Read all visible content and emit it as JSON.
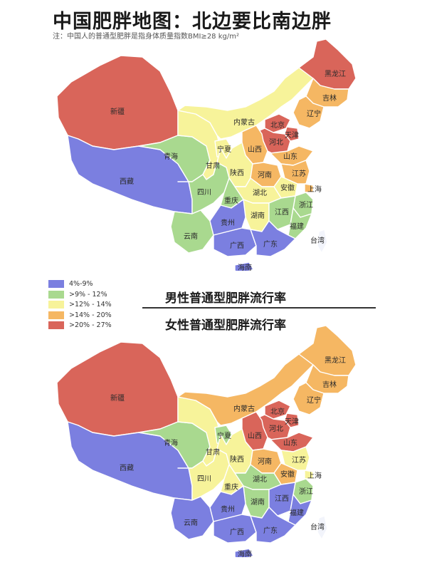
{
  "title": "中国肥胖地图：北边要比南边胖",
  "note": "注：中国人的普通型肥胖是指身体质量指数BMI≥28 kg/m²",
  "legend": [
    {
      "label": "4%-9%",
      "color": "#7b7fe0"
    },
    {
      "label": ">9% - 12%",
      "color": "#a9d98f"
    },
    {
      "label": ">12% - 14%",
      "color": "#f7f39a"
    },
    {
      "label": ">14% - 20%",
      "color": "#f5b763"
    },
    {
      "label": ">20% - 27%",
      "color": "#d9655a"
    }
  ],
  "maps": {
    "male": {
      "caption": "男性普通型肥胖流行率",
      "provinces": [
        {
          "name": "新疆",
          "level": 5
        },
        {
          "name": "西藏",
          "level": 1
        },
        {
          "name": "青海",
          "level": 2
        },
        {
          "name": "甘肃",
          "level": 3
        },
        {
          "name": "宁夏",
          "level": 3
        },
        {
          "name": "内蒙古",
          "level": 3
        },
        {
          "name": "黑龙江",
          "level": 5
        },
        {
          "name": "吉林",
          "level": 4
        },
        {
          "name": "辽宁",
          "level": 4
        },
        {
          "name": "北京",
          "level": 5
        },
        {
          "name": "天津",
          "level": 5
        },
        {
          "name": "河北",
          "level": 5
        },
        {
          "name": "山西",
          "level": 4
        },
        {
          "name": "陕西",
          "level": 3
        },
        {
          "name": "山东",
          "level": 4
        },
        {
          "name": "河南",
          "level": 4
        },
        {
          "name": "江苏",
          "level": 4
        },
        {
          "name": "安徽",
          "level": 3
        },
        {
          "name": "上海",
          "level": 4
        },
        {
          "name": "四川",
          "level": 2
        },
        {
          "name": "重庆",
          "level": 2
        },
        {
          "name": "湖北",
          "level": 3
        },
        {
          "name": "浙江",
          "level": 2
        },
        {
          "name": "湖南",
          "level": 3
        },
        {
          "name": "江西",
          "level": 2
        },
        {
          "name": "福建",
          "level": 2
        },
        {
          "name": "云南",
          "level": 2
        },
        {
          "name": "贵州",
          "level": 1
        },
        {
          "name": "广西",
          "level": 1
        },
        {
          "name": "广东",
          "level": 1
        },
        {
          "name": "台湾",
          "level": 0
        },
        {
          "name": "海南",
          "level": 1
        }
      ]
    },
    "female": {
      "caption": "女性普通型肥胖流行率",
      "provinces": [
        {
          "name": "新疆",
          "level": 5
        },
        {
          "name": "西藏",
          "level": 1
        },
        {
          "name": "青海",
          "level": 2
        },
        {
          "name": "甘肃",
          "level": 3
        },
        {
          "name": "宁夏",
          "level": 2
        },
        {
          "name": "内蒙古",
          "level": 4
        },
        {
          "name": "黑龙江",
          "level": 4
        },
        {
          "name": "吉林",
          "level": 4
        },
        {
          "name": "辽宁",
          "level": 4
        },
        {
          "name": "北京",
          "level": 5
        },
        {
          "name": "天津",
          "level": 5
        },
        {
          "name": "河北",
          "level": 5
        },
        {
          "name": "山西",
          "level": 5
        },
        {
          "name": "陕西",
          "level": 3
        },
        {
          "name": "山东",
          "level": 5
        },
        {
          "name": "河南",
          "level": 4
        },
        {
          "name": "江苏",
          "level": 3
        },
        {
          "name": "安徽",
          "level": 4
        },
        {
          "name": "上海",
          "level": 3
        },
        {
          "name": "四川",
          "level": 3
        },
        {
          "name": "重庆",
          "level": 3
        },
        {
          "name": "湖北",
          "level": 2
        },
        {
          "name": "浙江",
          "level": 2
        },
        {
          "name": "湖南",
          "level": 2
        },
        {
          "name": "江西",
          "level": 1
        },
        {
          "name": "福建",
          "level": 1
        },
        {
          "name": "云南",
          "level": 1
        },
        {
          "name": "贵州",
          "level": 1
        },
        {
          "name": "广西",
          "level": 1
        },
        {
          "name": "广东",
          "level": 1
        },
        {
          "name": "台湾",
          "level": 0
        },
        {
          "name": "海南",
          "level": 1
        }
      ]
    }
  },
  "no_data_color": "#f2f4fb"
}
